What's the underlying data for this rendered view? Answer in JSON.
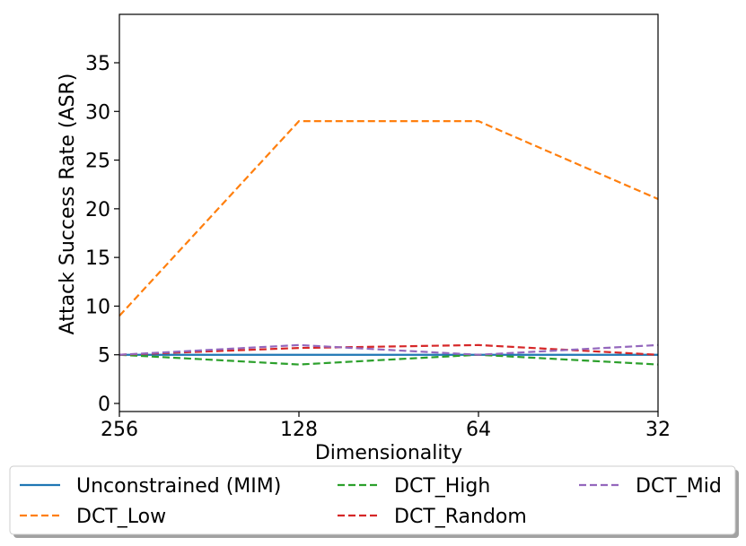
{
  "chart_data": {
    "type": "line",
    "xlabel": "Dimensionality",
    "ylabel": "Attack Success Rate (ASR)",
    "categories": [
      "256",
      "128",
      "64",
      "32"
    ],
    "ylim": [
      0,
      40
    ],
    "yticks": [
      0,
      5,
      10,
      15,
      20,
      25,
      30,
      35
    ],
    "grid": false,
    "legend_position": "bottom",
    "series": [
      {
        "name": "Unconstrained (MIM)",
        "color": "#1f77b4",
        "dash": "solid",
        "values": [
          5,
          5,
          5,
          5
        ]
      },
      {
        "name": "DCT_Low",
        "color": "#ff7f0e",
        "dash": "dashed",
        "values": [
          9,
          29,
          29,
          21
        ]
      },
      {
        "name": "DCT_High",
        "color": "#2ca02c",
        "dash": "dashed",
        "values": [
          5,
          4,
          5,
          4
        ]
      },
      {
        "name": "DCT_Random",
        "color": "#d62728",
        "dash": "dashed",
        "values": [
          5,
          5.7,
          6,
          5
        ]
      },
      {
        "name": "DCT_Mid",
        "color": "#9467bd",
        "dash": "dashed",
        "values": [
          5,
          6,
          5,
          6
        ]
      }
    ]
  }
}
